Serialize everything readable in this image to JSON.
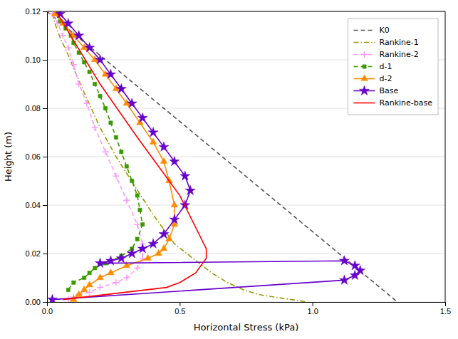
{
  "chart_data": {
    "type": "line",
    "xlabel": "Horizontal Stress (kPa)",
    "ylabel": "Height (m)",
    "xlim": [
      0,
      1.5
    ],
    "ylim": [
      0.0,
      0.12
    ],
    "xticks": [
      {
        "value": 0,
        "label": "0.0"
      },
      0.5,
      {
        "value": 1,
        "label": "1.0"
      },
      1.5
    ],
    "yticks": [
      {
        "value": 0,
        "label": "0.00"
      },
      0.02,
      0.04,
      0.06,
      0.08,
      {
        "value": 0.1,
        "label": "0.10"
      },
      0.12
    ],
    "grid": "y",
    "legend": "upper right",
    "series": [
      {
        "name": "K0",
        "color": "#555555",
        "line_style": "dashed",
        "marker": "none",
        "x": [
          0.0,
          1.32
        ],
        "values": [
          0.12,
          0.0
        ]
      },
      {
        "name": "Rankine-1",
        "color": "#999900",
        "line_style": "dash-dot",
        "marker": "none",
        "x": [
          0.02,
          0.03,
          0.05,
          0.08,
          0.11,
          0.15,
          0.2,
          0.26,
          0.33,
          0.4,
          0.48,
          0.55,
          0.62,
          0.68,
          0.74,
          0.8,
          0.86,
          0.92,
          0.98
        ],
        "values": [
          0.119,
          0.115,
          0.109,
          0.102,
          0.094,
          0.084,
          0.072,
          0.06,
          0.048,
          0.036,
          0.024,
          0.018,
          0.012,
          0.008,
          0.005,
          0.003,
          0.002,
          0.001,
          0.0
        ]
      },
      {
        "name": "Rankine-2",
        "color": "#ff99ff",
        "line_style": "dashed",
        "marker": "plus",
        "x": [
          0.02,
          0.04,
          0.06,
          0.08,
          0.1,
          0.12,
          0.15,
          0.18,
          0.22,
          0.26,
          0.3,
          0.34,
          0.36,
          0.36,
          0.34,
          0.3,
          0.26,
          0.2,
          0.16,
          0.12,
          0.1,
          0.08
        ],
        "values": [
          0.119,
          0.115,
          0.11,
          0.105,
          0.098,
          0.09,
          0.082,
          0.072,
          0.062,
          0.052,
          0.042,
          0.032,
          0.024,
          0.018,
          0.014,
          0.01,
          0.008,
          0.006,
          0.004,
          0.003,
          0.002,
          0.001
        ]
      },
      {
        "name": "d-1",
        "color": "#3a9a00",
        "line_style": "dashed",
        "marker": "square",
        "x": [
          0.04,
          0.05,
          0.07,
          0.09,
          0.1,
          0.12,
          0.14,
          0.16,
          0.18,
          0.2,
          0.22,
          0.24,
          0.26,
          0.28,
          0.3,
          0.32,
          0.34,
          0.35,
          0.36,
          0.34,
          0.32,
          0.28,
          0.22,
          0.18,
          0.16,
          0.14,
          0.1,
          0.08
        ],
        "values": [
          0.119,
          0.116,
          0.113,
          0.11,
          0.107,
          0.103,
          0.099,
          0.095,
          0.09,
          0.085,
          0.08,
          0.074,
          0.068,
          0.062,
          0.056,
          0.05,
          0.044,
          0.038,
          0.032,
          0.026,
          0.022,
          0.019,
          0.016,
          0.014,
          0.012,
          0.01,
          0.008,
          0.005
        ]
      },
      {
        "name": "d-2",
        "color": "#ff8c00",
        "line_style": "solid",
        "marker": "triangle",
        "x": [
          0.03,
          0.06,
          0.1,
          0.14,
          0.18,
          0.22,
          0.26,
          0.3,
          0.35,
          0.4,
          0.44,
          0.46,
          0.48,
          0.48,
          0.46,
          0.44,
          0.42,
          0.38,
          0.3,
          0.24,
          0.2,
          0.16,
          0.14,
          0.12,
          0.1
        ],
        "values": [
          0.119,
          0.115,
          0.11,
          0.105,
          0.1,
          0.094,
          0.088,
          0.082,
          0.074,
          0.066,
          0.058,
          0.05,
          0.04,
          0.032,
          0.026,
          0.022,
          0.02,
          0.018,
          0.015,
          0.012,
          0.01,
          0.007,
          0.005,
          0.003,
          0.001
        ]
      },
      {
        "name": "Base",
        "color": "#6600cc",
        "line_style": "solid",
        "marker": "star",
        "x": [
          0.05,
          0.08,
          0.12,
          0.16,
          0.2,
          0.24,
          0.28,
          0.32,
          0.36,
          0.4,
          0.44,
          0.48,
          0.52,
          0.54,
          0.52,
          0.48,
          0.44,
          0.4,
          0.36,
          0.32,
          0.28,
          0.24,
          0.2,
          1.12,
          1.16,
          1.18,
          1.16,
          1.12,
          0.02
        ],
        "values": [
          0.119,
          0.115,
          0.11,
          0.105,
          0.1,
          0.094,
          0.088,
          0.082,
          0.076,
          0.07,
          0.064,
          0.058,
          0.052,
          0.046,
          0.04,
          0.034,
          0.028,
          0.024,
          0.022,
          0.02,
          0.018,
          0.017,
          0.016,
          0.017,
          0.015,
          0.013,
          0.011,
          0.009,
          0.001
        ]
      },
      {
        "name": "Rankine-base",
        "color": "#ff0000",
        "line_style": "solid",
        "marker": "none",
        "x": [
          0.04,
          0.1,
          0.2,
          0.34,
          0.5,
          0.6,
          0.6,
          0.56,
          0.5,
          0.45,
          0.06
        ],
        "values": [
          0.119,
          0.108,
          0.09,
          0.068,
          0.044,
          0.022,
          0.018,
          0.012,
          0.008,
          0.006,
          0.001
        ]
      }
    ]
  }
}
